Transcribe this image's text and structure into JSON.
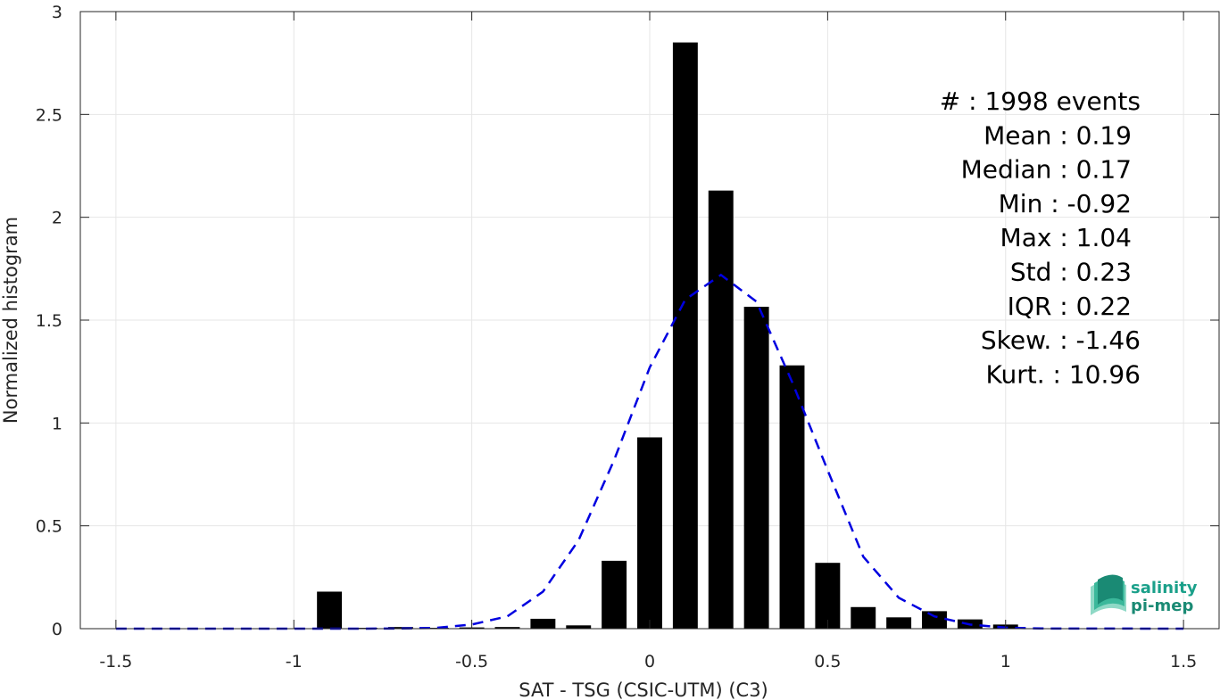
{
  "chart_data": {
    "type": "bar",
    "xlabel": "SAT - TSG (CSIC-UTM) (C3)",
    "ylabel": "Normalized histogram",
    "xlim": [
      -1.6,
      1.6
    ],
    "ylim": [
      0,
      3
    ],
    "grid": true,
    "xticks": [
      -1.5,
      -1,
      -0.5,
      0,
      0.5,
      1,
      1.5
    ],
    "xtick_labels": [
      "-1.5",
      "-1",
      "-0.5",
      "0",
      "0.5",
      "1",
      "1.5"
    ],
    "yticks": [
      0,
      0.5,
      1,
      1.5,
      2,
      2.5,
      3
    ],
    "ytick_labels": [
      "0",
      "0.5",
      "1",
      "1.5",
      "2",
      "2.5",
      "3"
    ],
    "bar_width": 0.07,
    "x": [
      -0.9,
      -0.8,
      -0.7,
      -0.6,
      -0.5,
      -0.4,
      -0.3,
      -0.2,
      -0.1,
      0.0,
      0.1,
      0.2,
      0.3,
      0.4,
      0.5,
      0.6,
      0.7,
      0.8,
      0.9,
      1.0
    ],
    "values": [
      0.18,
      0.004,
      0.008,
      0.004,
      0.006,
      0.008,
      0.048,
      0.016,
      0.33,
      0.93,
      2.85,
      2.13,
      1.565,
      1.28,
      0.32,
      0.105,
      0.055,
      0.085,
      0.045,
      0.02
    ],
    "fit_curve": {
      "style": "dashed",
      "color": "#0000e0",
      "x": [
        -1.5,
        -1.0,
        -0.9,
        -0.8,
        -0.7,
        -0.6,
        -0.5,
        -0.4,
        -0.3,
        -0.2,
        -0.1,
        0.0,
        0.1,
        0.2,
        0.3,
        0.4,
        0.5,
        0.6,
        0.7,
        0.8,
        0.9,
        1.0,
        1.1,
        1.5
      ],
      "y": [
        0,
        0,
        0,
        0,
        0.001,
        0.004,
        0.02,
        0.06,
        0.18,
        0.43,
        0.82,
        1.27,
        1.6,
        1.72,
        1.59,
        1.2,
        0.77,
        0.35,
        0.15,
        0.06,
        0.02,
        0.005,
        0.001,
        0
      ]
    },
    "bar_color": "#000000",
    "stats": [
      {
        "label": "#  : 1998 events"
      },
      {
        "label": "Mean : 0.19"
      },
      {
        "label": "Median : 0.17"
      },
      {
        "label": "Min : -0.92"
      },
      {
        "label": "Max : 1.04"
      },
      {
        "label": "Std : 0.23"
      },
      {
        "label": "IQR : 0.22"
      },
      {
        "label": "Skew. : -1.46"
      },
      {
        "label": "Kurt. : 10.96"
      }
    ]
  },
  "logo": {
    "line1": "salinity",
    "line2": "pi-mep",
    "color": "#1aa08a"
  }
}
